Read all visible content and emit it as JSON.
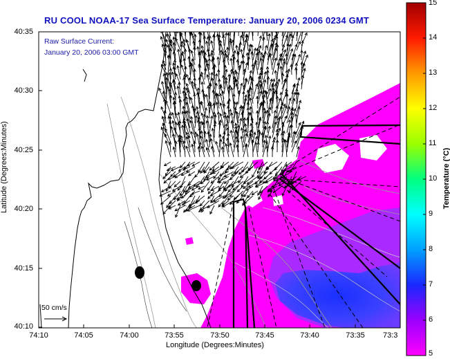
{
  "title": "RU COOL  NOAA-17  Sea Surface Temperature:  January 20, 2006 0234 GMT",
  "annotation": {
    "line1": "Raw Surface Current:",
    "line2": "January 20, 2006 03:00 GMT"
  },
  "scale_arrow_label": "50 cm/s",
  "axes": {
    "ylabel": "Latitude (Degrees:Minutes)",
    "xlabel": "Longitude (Degrees:Minutes)",
    "yticks": [
      "40:35",
      "40:30",
      "40:25",
      "40:20",
      "40:15",
      "40:10"
    ],
    "xticks": [
      "74:10",
      "74:05",
      "74:00",
      "73:55",
      "73:50",
      "73:45",
      "73:40",
      "73:35",
      "73:3"
    ]
  },
  "colorbar": {
    "label": "Temperature (°C)",
    "ticks": [
      "15",
      "14",
      "13",
      "12",
      "11",
      "10",
      "9",
      "8",
      "7",
      "6",
      "5"
    ],
    "range": [
      5,
      15
    ],
    "stops": [
      "#ff00ff",
      "#9a00ff",
      "#1a28ff",
      "#00a0ff",
      "#00ffff",
      "#00ff80",
      "#9aff00",
      "#ffff00",
      "#ff9a00",
      "#ff1a00",
      "#a00000"
    ]
  },
  "colors": {
    "land": "#ffffff",
    "warm_water": "#ff00ff",
    "cold_water": "#2a3cff",
    "current_vectors": "#000000",
    "title": "#1010c0"
  },
  "markers": [
    "station-marker-1",
    "station-marker-2"
  ]
}
